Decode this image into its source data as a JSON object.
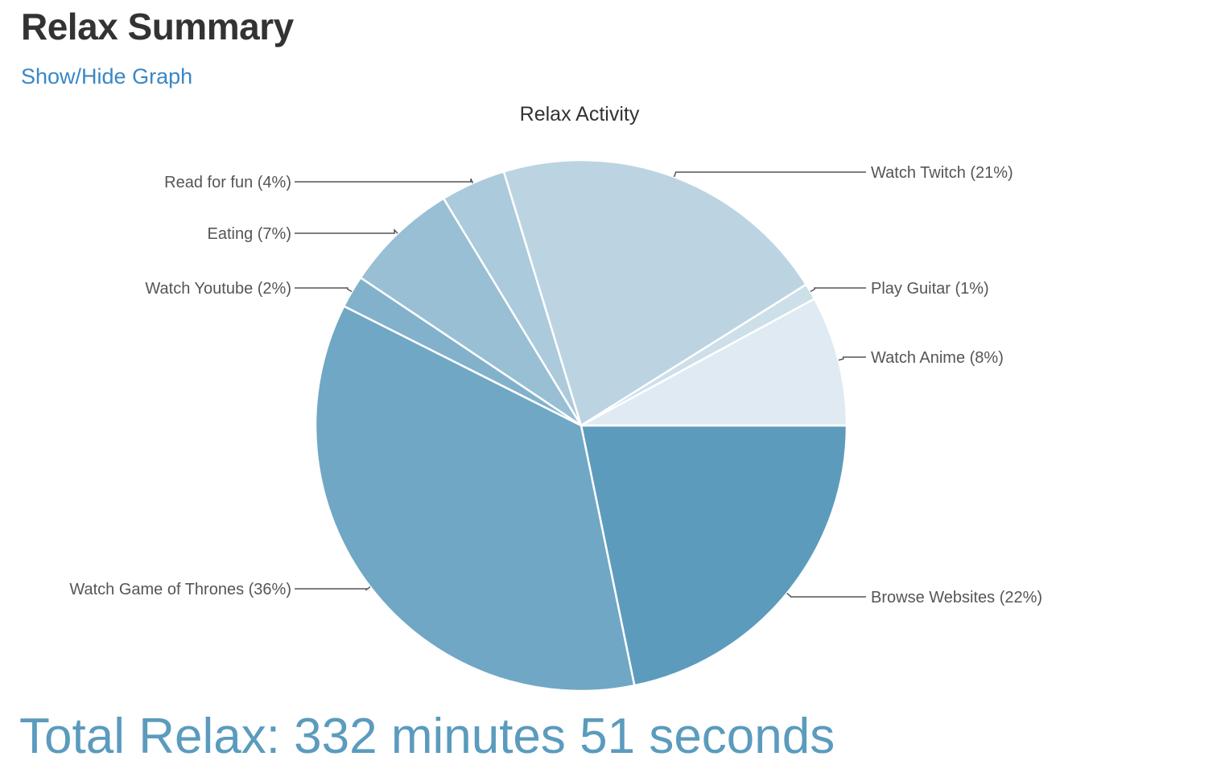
{
  "header": {
    "title": "Relax Summary",
    "toggle_link": "Show/Hide Graph"
  },
  "chart_data": {
    "type": "pie",
    "title": "Relax Activity",
    "start_angle_deg": 0,
    "direction": "clockwise",
    "slices": [
      {
        "label": "Browse Websites (22%)",
        "value": 22,
        "color": "#5d9bbd",
        "side": "right"
      },
      {
        "label": "Watch Game of Thrones (36%)",
        "value": 36,
        "color": "#70a7c4",
        "side": "left"
      },
      {
        "label": "Watch Youtube  (2%)",
        "value": 2,
        "color": "#82b2cb",
        "side": "left"
      },
      {
        "label": "Eating (7%)",
        "value": 7,
        "color": "#98bfd3",
        "side": "left"
      },
      {
        "label": "Read for fun  (4%)",
        "value": 4,
        "color": "#abcadb",
        "side": "left"
      },
      {
        "label": "Watch Twitch (21%)",
        "value": 21,
        "color": "#bcd4e2",
        "side": "right"
      },
      {
        "label": "Play Guitar (1%)",
        "value": 1,
        "color": "#cddfe9",
        "side": "right"
      },
      {
        "label": "Watch Anime (8%)",
        "value": 8,
        "color": "#dfeaf2",
        "side": "right"
      }
    ]
  },
  "footer": {
    "total_text": "Total Relax: 332 minutes 51 seconds"
  }
}
